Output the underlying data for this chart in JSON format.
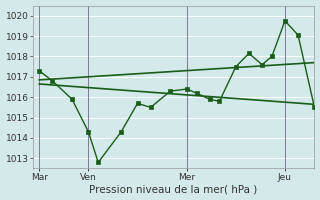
{
  "background_color": "#d4eaea",
  "grid_color": "#ffffff",
  "vline_color": "#5a5a7a",
  "line_color": "#1a5c1a",
  "xlabel": "Pression niveau de la mer( hPa )",
  "ylim": [
    1012.5,
    1020.5
  ],
  "yticks": [
    1013,
    1014,
    1015,
    1016,
    1017,
    1018,
    1019,
    1020
  ],
  "xtick_labels": [
    "Mar",
    "Ven",
    "Mer",
    "Jeu"
  ],
  "xtick_positions": [
    0,
    30,
    90,
    150
  ],
  "xlim": [
    -4,
    168
  ],
  "line1_x": [
    0,
    8,
    20,
    30,
    36,
    50,
    60,
    68,
    80,
    90,
    96,
    104,
    110,
    120,
    128,
    136,
    142,
    150,
    158,
    168
  ],
  "line1_y": [
    1017.3,
    1016.8,
    1015.9,
    1014.3,
    1012.8,
    1014.3,
    1015.7,
    1015.5,
    1016.3,
    1016.4,
    1016.2,
    1015.9,
    1015.8,
    1017.5,
    1018.15,
    1017.6,
    1018.0,
    1019.75,
    1019.05,
    1015.5
  ],
  "line2_x": [
    0,
    168
  ],
  "line2_y": [
    1016.85,
    1017.7
  ],
  "line3_x": [
    0,
    168
  ],
  "line3_y": [
    1016.65,
    1015.65
  ],
  "tick_fontsize": 6.5,
  "xlabel_fontsize": 7.5
}
